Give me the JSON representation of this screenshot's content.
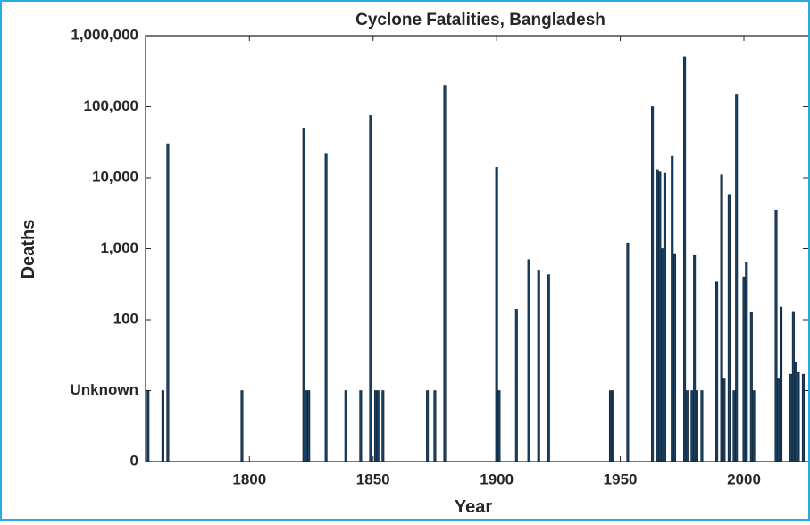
{
  "chart_data": {
    "type": "bar",
    "title": "Cyclone Fatalities, Bangladesh",
    "x_label": "Year",
    "y_label": "Deaths",
    "color": "#1b3f5f",
    "ylog": true,
    "x": [
      1759,
      1765,
      1767,
      1797,
      1822,
      1823,
      1824,
      1831,
      1839,
      1845,
      1849,
      1851,
      1852,
      1854,
      1872,
      1875,
      1879,
      1900,
      1901,
      1908,
      1913,
      1917,
      1921,
      1946,
      1947,
      1953,
      1963,
      1965,
      1966,
      1967,
      1968,
      1971,
      1972,
      1976,
      1977,
      1979,
      1980,
      1981,
      1983,
      1989,
      1991,
      1992,
      1994,
      1996,
      1997,
      2000,
      2001,
      2003,
      2004,
      2013,
      2014,
      2015,
      2019,
      2020,
      2021,
      2022,
      2024
    ],
    "values": [
      10,
      10,
      30000,
      10,
      50000,
      10,
      10,
      22000,
      10,
      10,
      75000,
      10,
      10,
      10,
      10,
      10,
      200000,
      14000,
      10,
      140,
      700,
      500,
      430,
      10,
      10,
      1200,
      100000,
      13000,
      12000,
      1000,
      11500,
      20000,
      850,
      500000,
      10,
      10,
      800,
      10,
      10,
      340,
      11000,
      15,
      5800,
      10,
      150000,
      400,
      650,
      125,
      10,
      3500,
      15,
      150,
      17,
      130,
      25,
      18,
      17
    ],
    "xlim": [
      1758,
      2026
    ],
    "xticks": [
      1800,
      1850,
      1900,
      1950,
      2000
    ],
    "ylim": [
      1,
      1000000
    ],
    "yticks": [
      {
        "value": 1,
        "label": "0"
      },
      {
        "value": 10,
        "label": "Unknown"
      },
      {
        "value": 100,
        "label": "100"
      },
      {
        "value": 1000,
        "label": "1,000"
      },
      {
        "value": 10000,
        "label": "10,000"
      },
      {
        "value": 100000,
        "label": "100,000"
      },
      {
        "value": 1000000,
        "label": "1,000,000"
      }
    ]
  }
}
